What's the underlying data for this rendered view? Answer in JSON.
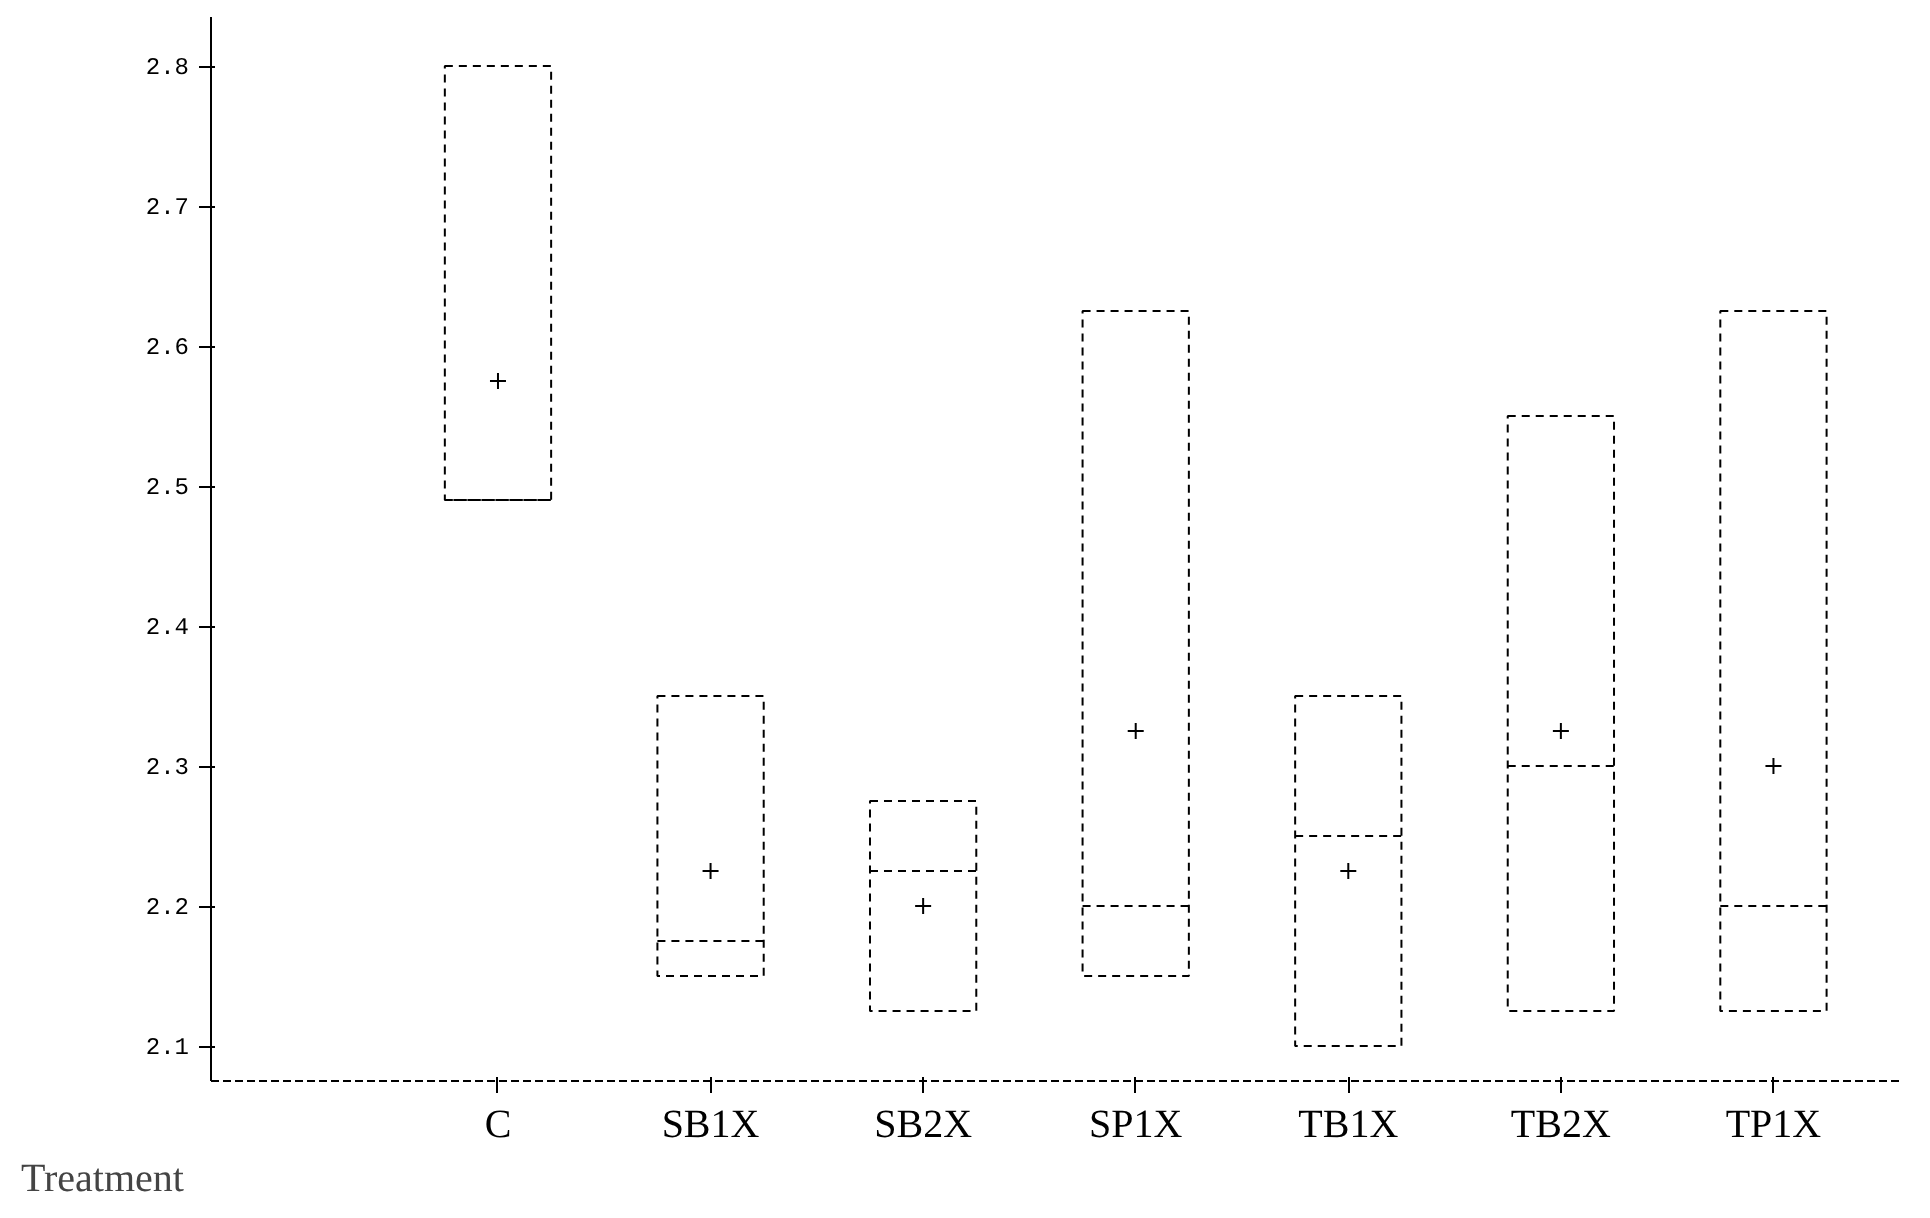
{
  "chart_data": {
    "type": "box",
    "xlabel": "Treatment",
    "categories": [
      "C",
      "SB1X",
      "SB2X",
      "SP1X",
      "TB1X",
      "TB2X",
      "TP1X"
    ],
    "boxes": [
      {
        "low": 2.49,
        "q1": 2.49,
        "median": 2.49,
        "q3": 2.8,
        "high": 2.8,
        "mean": 2.575
      },
      {
        "low": 2.15,
        "q1": 2.15,
        "median": 2.175,
        "q3": 2.35,
        "high": 2.35,
        "mean": 2.225
      },
      {
        "low": 2.125,
        "q1": 2.125,
        "median": 2.225,
        "q3": 2.275,
        "high": 2.275,
        "mean": 2.2
      },
      {
        "low": 2.15,
        "q1": 2.15,
        "median": 2.2,
        "q3": 2.625,
        "high": 2.625,
        "mean": 2.325
      },
      {
        "low": 2.1,
        "q1": 2.1,
        "median": 2.25,
        "q3": 2.35,
        "high": 2.35,
        "mean": 2.225
      },
      {
        "low": 2.125,
        "q1": 2.125,
        "median": 2.3,
        "q3": 2.55,
        "high": 2.55,
        "mean": 2.325
      },
      {
        "low": 2.125,
        "q1": 2.125,
        "median": 2.2,
        "q3": 2.625,
        "high": 2.625,
        "mean": 2.3
      }
    ],
    "ylim": [
      2.075,
      2.835
    ],
    "yticks": [
      2.1,
      2.2,
      2.3,
      2.4,
      2.5,
      2.6,
      2.7,
      2.8
    ],
    "grid": false
  }
}
